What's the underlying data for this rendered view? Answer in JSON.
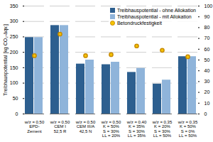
{
  "chart_data": {
    "type": "bar",
    "categories": [
      "w/z = 0,50\nEPD-\nZement",
      "w/z = 0,50\nCEM I\n52,5 R",
      "w/z = 0,50\nCEM III/A\n42,5 N",
      "w/z = 0,50\nK = 50%\nS = 30%\nLL = 20%",
      "w/z = 0,40\nK = 35%\nS = 30%\nLL = 35%",
      "w/z = 0,35\nK = 20%\nS = 30%\nLL = 50%",
      "w/z = 0,35\nK = 50%\nS = 0%\nLL = 50%"
    ],
    "series": [
      {
        "name": "Treibhauspotential - ohne Allokation",
        "color": "#2d5f8f",
        "values": [
          248,
          287,
          162,
          160,
          135,
          97,
          186
        ]
      },
      {
        "name": "Treibhauspotential - mit Allokation",
        "color": "#8fb4da",
        "values": [
          248,
          287,
          175,
          168,
          148,
          110,
          186
        ]
      },
      {
        "name": "Betondruckfestigkeit",
        "type": "scatter",
        "marker": "circle",
        "axis": "y2",
        "color": "#f5c400",
        "values": [
          54,
          74,
          54,
          55,
          63,
          59,
          53
        ]
      }
    ],
    "y_label": "Treibhauspotential [kg CO₂-äqv.]",
    "ylim": [
      0,
      350
    ],
    "yticks": [
      0,
      50,
      100,
      150,
      200,
      250,
      300,
      350
    ],
    "y2lim": [
      0,
      100
    ],
    "y2ticks": [
      0,
      10,
      20,
      30,
      40,
      50,
      60,
      70,
      80,
      90,
      100
    ],
    "grid": true,
    "legend": "top-right"
  }
}
